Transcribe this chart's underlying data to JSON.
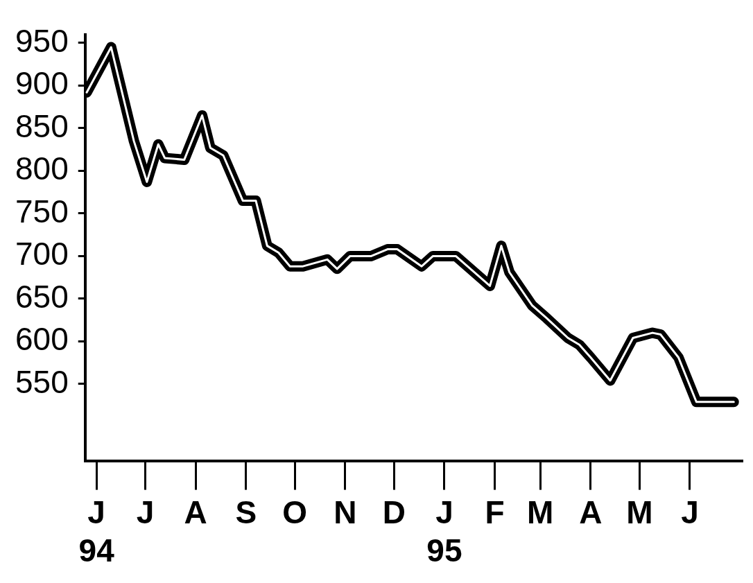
{
  "chart_data": {
    "type": "line",
    "x": [
      "1994-05-26",
      "1994-06-10",
      "1994-06-24",
      "1994-07-02",
      "1994-07-09",
      "1994-07-13",
      "1994-07-25",
      "1994-08-05",
      "1994-08-10",
      "1994-08-18",
      "1994-08-30",
      "1994-09-07",
      "1994-09-14",
      "1994-09-21",
      "1994-09-28",
      "1994-10-06",
      "1994-10-21",
      "1994-10-27",
      "1994-11-04",
      "1994-11-17",
      "1994-11-27",
      "1994-12-03",
      "1994-12-18",
      "1994-12-25",
      "1995-01-08",
      "1995-01-29",
      "1995-02-05",
      "1995-02-10",
      "1995-02-24",
      "1995-03-05",
      "1995-03-18",
      "1995-03-25",
      "1995-04-01",
      "1995-04-13",
      "1995-04-27",
      "1995-05-09",
      "1995-05-14",
      "1995-05-25",
      "1995-06-05",
      "1995-06-28"
    ],
    "series": [
      {
        "color": "#000000",
        "values": [
          892,
          945,
          835,
          787,
          831,
          815,
          813,
          865,
          827,
          818,
          765,
          765,
          712,
          704,
          688,
          688,
          696,
          685,
          700,
          700,
          708,
          708,
          688,
          700,
          700,
          665,
          712,
          681,
          642,
          627,
          604,
          596,
          581,
          554,
          604,
          610,
          608,
          581,
          529,
          529
        ]
      }
    ],
    "xlim": [
      "1994-05-25",
      "1995-07-03"
    ],
    "xticks": [
      {
        "value": "1994-06-01",
        "label": "J\n94"
      },
      {
        "value": "1994-07-01",
        "label": "J"
      },
      {
        "value": "1994-08-01",
        "label": "A"
      },
      {
        "value": "1994-09-01",
        "label": "S"
      },
      {
        "value": "1994-10-01",
        "label": "O"
      },
      {
        "value": "1994-11-01",
        "label": "N"
      },
      {
        "value": "1994-12-01",
        "label": "D"
      },
      {
        "value": "1995-01-01",
        "label": "J\n95"
      },
      {
        "value": "1995-02-01",
        "label": "F"
      },
      {
        "value": "1995-03-01",
        "label": "M"
      },
      {
        "value": "1995-04-01",
        "label": "A"
      },
      {
        "value": "1995-05-01",
        "label": "M"
      },
      {
        "value": "1995-06-01",
        "label": "J"
      }
    ],
    "ylim": [
      460,
      960
    ],
    "yticks": [
      550,
      600,
      650,
      700,
      750,
      800,
      850,
      900,
      950
    ],
    "grid": false,
    "legend": false,
    "marker": "none",
    "line_style": "solid"
  }
}
